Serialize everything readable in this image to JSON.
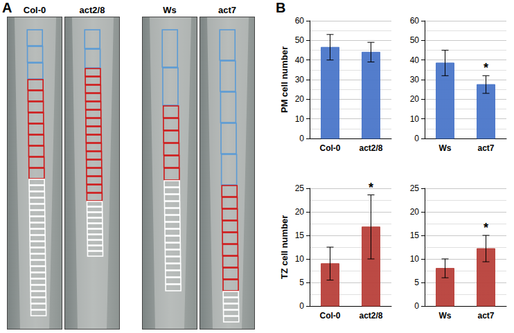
{
  "panel_labels": [
    "A",
    "B"
  ],
  "images": [
    "Col-0",
    "act2/8",
    "Ws",
    "act7"
  ],
  "chart_data": [
    {
      "type": "bar",
      "ylabel": "PM cell number",
      "categories": [
        "Col-0",
        "act2/8"
      ],
      "values": [
        46.5,
        44
      ],
      "errors": [
        6.5,
        5
      ],
      "annotations": [],
      "color": "#4a76c9",
      "ylim": [
        0,
        60
      ],
      "yticks": [
        0,
        10,
        20,
        30,
        40,
        50,
        60
      ],
      "grid": true
    },
    {
      "type": "bar",
      "categories": [
        "Ws",
        "act7"
      ],
      "values": [
        38.5,
        27.5
      ],
      "errors": [
        6.5,
        4.5
      ],
      "annotations": [
        {
          "category": "act7",
          "text": "*"
        }
      ],
      "color": "#4a76c9",
      "ylim": [
        0,
        60
      ],
      "yticks": [
        0,
        10,
        20,
        30,
        40,
        50,
        60
      ],
      "grid": true
    },
    {
      "type": "bar",
      "ylabel": "TZ cell number",
      "categories": [
        "Col-0",
        "act2/8"
      ],
      "values": [
        9,
        16.8
      ],
      "errors": [
        3.5,
        6.8
      ],
      "annotations": [
        {
          "category": "act2/8",
          "text": "*"
        }
      ],
      "color": "#b8403a",
      "ylim": [
        0,
        25
      ],
      "yticks": [
        0,
        5,
        10,
        15,
        20,
        25
      ],
      "grid": true
    },
    {
      "type": "bar",
      "categories": [
        "Ws",
        "act7"
      ],
      "values": [
        8,
        12.2
      ],
      "errors": [
        2,
        2.8
      ],
      "annotations": [
        {
          "category": "act7",
          "text": "*"
        }
      ],
      "color": "#b8403a",
      "ylim": [
        0,
        25
      ],
      "yticks": [
        0,
        5,
        10,
        15,
        20,
        25
      ],
      "grid": true
    }
  ]
}
